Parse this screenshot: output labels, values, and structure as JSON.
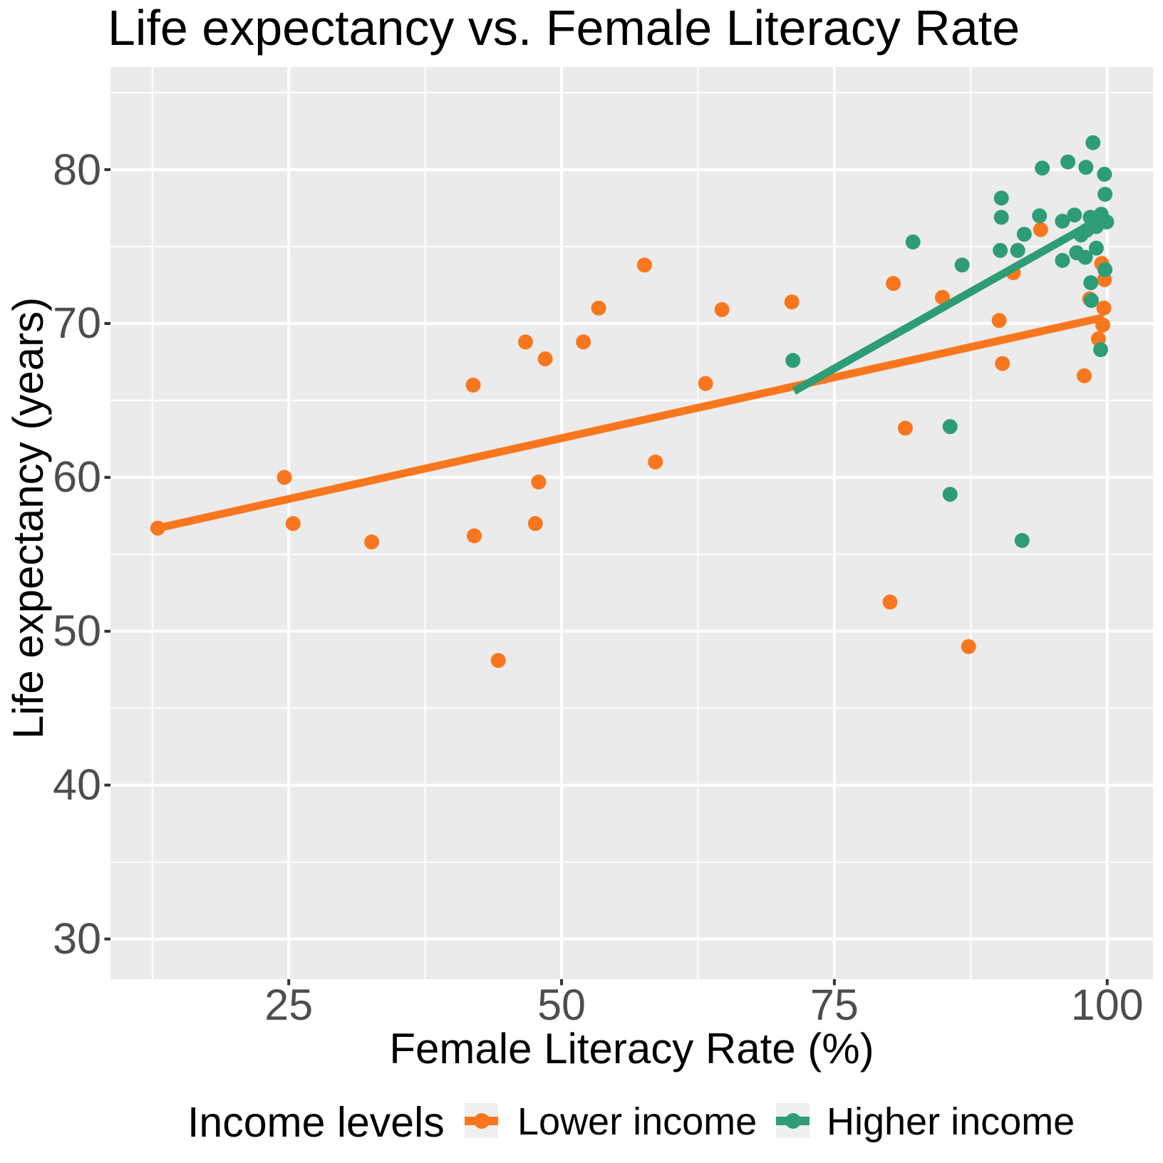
{
  "title": "Life expectancy vs. Female Literacy Rate",
  "axes": {
    "x": {
      "label": "Female Literacy Rate (%)",
      "tick_labels": [
        "25",
        "50",
        "75",
        "100"
      ]
    },
    "y": {
      "label": "Life expectancy (years)",
      "tick_labels": [
        "30",
        "40",
        "50",
        "60",
        "70",
        "80"
      ]
    }
  },
  "legend": {
    "title": "Income levels",
    "items": [
      {
        "label": "Lower income",
        "color": "#F8771E"
      },
      {
        "label": "Higher income",
        "color": "#2E9D76"
      }
    ]
  },
  "style_colors": {
    "panel_background": "#EBEBEB",
    "grid": "#FFFFFF",
    "tick_mark": "#333333",
    "tick_label": "#4D4D4D",
    "title_text": "#000000",
    "legend_key_background": "#EFEFEF"
  },
  "chart_data": {
    "type": "scatter",
    "title": "Life expectancy vs. Female Literacy Rate",
    "xlabel": "Female Literacy Rate (%)",
    "ylabel": "Life expectancy (years)",
    "xlim": [
      8.66,
      104.2
    ],
    "ylim": [
      27.39,
      86.67
    ],
    "x_major_ticks": [
      25,
      50,
      75,
      100
    ],
    "x_minor_ticks": [
      12.5,
      37.5,
      62.5,
      87.5
    ],
    "y_major_ticks": [
      30,
      40,
      50,
      60,
      70,
      80
    ],
    "y_minor_ticks": [
      35,
      45,
      55,
      65,
      75,
      85
    ],
    "grid": true,
    "legend_position": "bottom",
    "series": [
      {
        "name": "Lower income",
        "color": "#F8771E",
        "points": [
          [
            13.0,
            56.7
          ],
          [
            24.6,
            60.0
          ],
          [
            25.4,
            57.0
          ],
          [
            32.6,
            55.8
          ],
          [
            41.9,
            66.0
          ],
          [
            42.0,
            56.2
          ],
          [
            44.2,
            48.1
          ],
          [
            46.7,
            68.8
          ],
          [
            47.6,
            57.0
          ],
          [
            47.9,
            59.7
          ],
          [
            48.5,
            67.7
          ],
          [
            52.0,
            68.8
          ],
          [
            53.4,
            71.0
          ],
          [
            57.6,
            73.8
          ],
          [
            58.6,
            61.0
          ],
          [
            63.2,
            66.1
          ],
          [
            64.7,
            70.9
          ],
          [
            71.1,
            71.4
          ],
          [
            80.1,
            51.9
          ],
          [
            80.4,
            72.6
          ],
          [
            81.5,
            63.2
          ],
          [
            84.9,
            71.7
          ],
          [
            87.3,
            49.0
          ],
          [
            90.1,
            70.2
          ],
          [
            90.4,
            67.4
          ],
          [
            91.4,
            73.3
          ],
          [
            93.9,
            76.1
          ],
          [
            97.9,
            66.6
          ],
          [
            98.4,
            71.6
          ],
          [
            99.2,
            69.0
          ],
          [
            99.5,
            73.9
          ],
          [
            99.6,
            69.9
          ],
          [
            99.7,
            71.0
          ],
          [
            99.75,
            72.85
          ]
        ],
        "trend_line": {
          "x1": 13.0,
          "y1": 56.7,
          "x2": 99.7,
          "y2": 70.4
        }
      },
      {
        "name": "Higher income",
        "color": "#2E9D76",
        "points": [
          [
            71.2,
            67.6
          ],
          [
            82.2,
            75.3
          ],
          [
            85.6,
            58.9
          ],
          [
            85.6,
            63.3
          ],
          [
            86.7,
            73.8
          ],
          [
            90.2,
            74.75
          ],
          [
            90.3,
            78.15
          ],
          [
            90.3,
            76.9
          ],
          [
            91.8,
            74.75
          ],
          [
            92.2,
            55.9
          ],
          [
            92.4,
            75.8
          ],
          [
            93.8,
            77.0
          ],
          [
            94.05,
            80.1
          ],
          [
            95.9,
            76.65
          ],
          [
            95.9,
            74.1
          ],
          [
            96.4,
            80.5
          ],
          [
            97.0,
            77.05
          ],
          [
            97.2,
            74.6
          ],
          [
            97.6,
            75.75
          ],
          [
            98.0,
            74.3
          ],
          [
            98.05,
            80.15
          ],
          [
            98.1,
            76.05
          ],
          [
            98.45,
            76.9
          ],
          [
            98.5,
            72.65
          ],
          [
            98.55,
            71.5
          ],
          [
            98.7,
            81.75
          ],
          [
            99.0,
            76.3
          ],
          [
            99.0,
            74.9
          ],
          [
            99.4,
            68.3
          ],
          [
            99.45,
            77.1
          ],
          [
            99.75,
            79.7
          ],
          [
            99.8,
            78.4
          ],
          [
            99.8,
            73.5
          ],
          [
            99.95,
            76.6
          ]
        ],
        "trend_line": {
          "x1": 71.3,
          "y1": 65.6,
          "x2": 99.9,
          "y2": 77.0
        }
      }
    ]
  }
}
